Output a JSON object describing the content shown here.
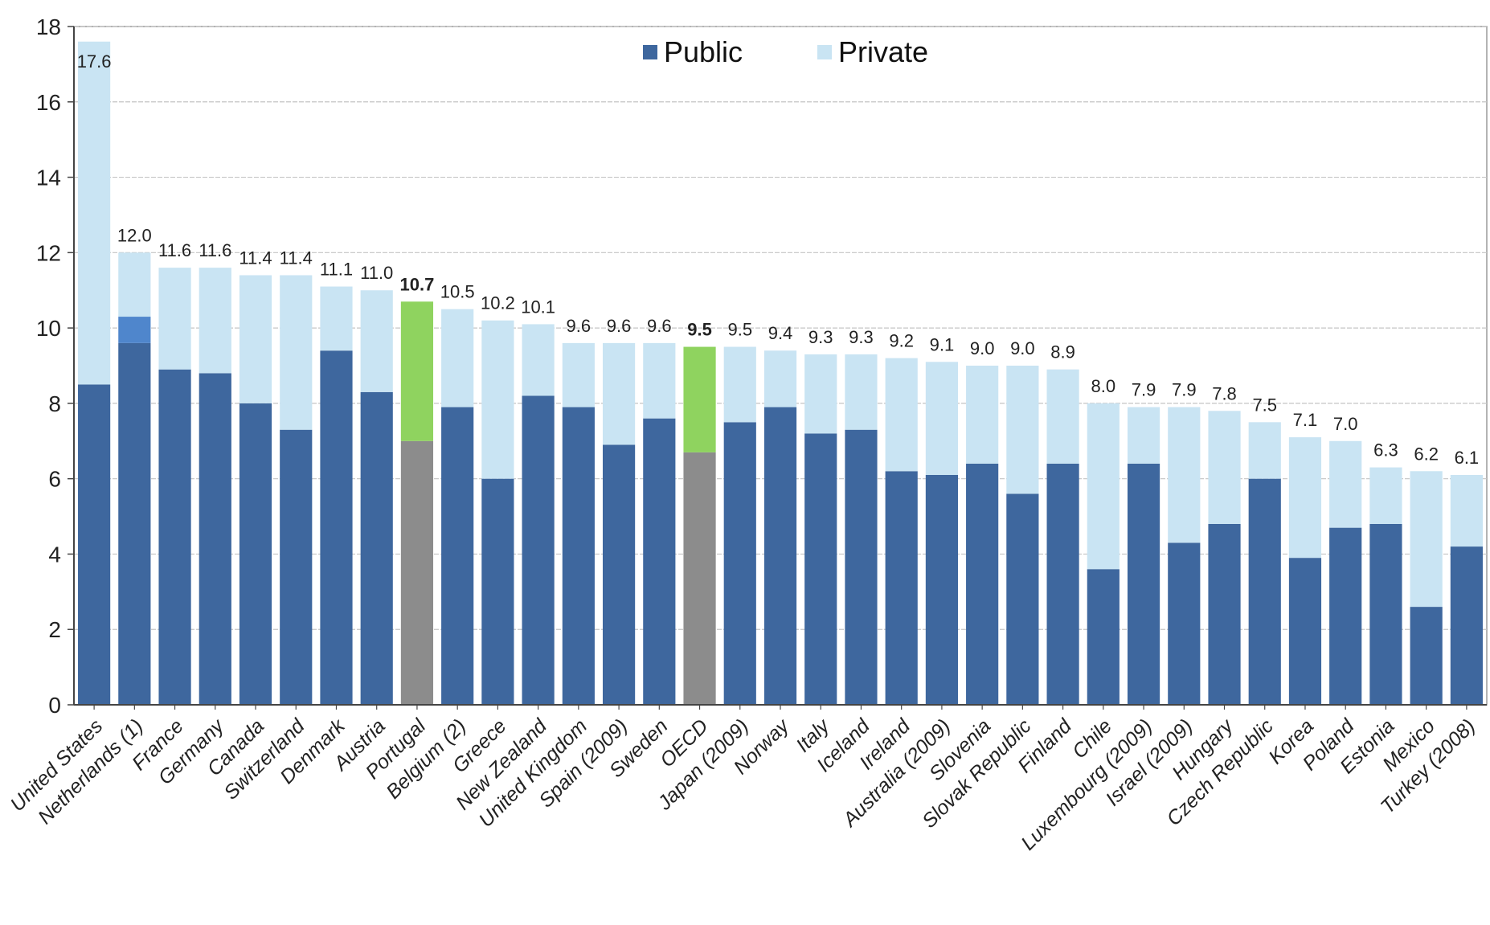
{
  "chart_data": {
    "type": "bar",
    "stacked": true,
    "categories": [
      "United States",
      "Netherlands (1)",
      "France",
      "Germany",
      "Canada",
      "Switzerland",
      "Denmark",
      "Austria",
      "Portugal",
      "Belgium (2)",
      "Greece",
      "New Zealand",
      "United Kingdom",
      "Spain (2009)",
      "Sweden",
      "OECD",
      "Japan (2009)",
      "Norway",
      "Italy",
      "Iceland",
      "Ireland",
      "Australia (2009)",
      "Slovenia",
      "Slovak Republic",
      "Finland",
      "Chile",
      "Luxembourg (2009)",
      "Israel (2009)",
      "Hungary",
      "Czech Republic",
      "Korea",
      "Poland",
      "Estonia",
      "Mexico",
      "Turkey (2008)"
    ],
    "totals": [
      17.6,
      12.0,
      11.6,
      11.6,
      11.4,
      11.4,
      11.1,
      11.0,
      10.7,
      10.5,
      10.2,
      10.1,
      9.6,
      9.6,
      9.6,
      9.5,
      9.5,
      9.4,
      9.3,
      9.3,
      9.2,
      9.1,
      9.0,
      9.0,
      8.9,
      8.0,
      7.9,
      7.9,
      7.8,
      7.5,
      7.1,
      7.0,
      6.3,
      6.2,
      6.1
    ],
    "total_labels": [
      "17.6",
      "12.0",
      "11.6",
      "11.6",
      "11.4",
      "11.4",
      "11.1",
      "11.0",
      "10.7",
      "10.5",
      "10.2",
      "10.1",
      "9.6",
      "9.6",
      "9.6",
      "9.5",
      "9.5",
      "9.4",
      "9.3",
      "9.3",
      "9.2",
      "9.1",
      "9.0",
      "9.0",
      "8.9",
      "8.0",
      "7.9",
      "7.9",
      "7.8",
      "7.5",
      "7.1",
      "7.0",
      "6.3",
      "6.2",
      "6.1"
    ],
    "bold_labels": [
      8,
      15
    ],
    "series": [
      {
        "name": "Public",
        "values": [
          8.5,
          9.6,
          8.9,
          8.8,
          8.0,
          7.3,
          9.4,
          8.3,
          7.0,
          7.9,
          6.0,
          8.2,
          7.9,
          6.9,
          7.6,
          6.7,
          7.5,
          7.9,
          7.2,
          7.3,
          6.2,
          6.1,
          6.4,
          5.6,
          6.4,
          3.6,
          6.4,
          4.3,
          4.8,
          6.0,
          3.9,
          4.7,
          4.8,
          2.6,
          4.2
        ]
      },
      {
        "name": "Private",
        "values": [
          9.1,
          2.4,
          2.7,
          2.8,
          3.4,
          4.1,
          1.7,
          2.7,
          3.7,
          2.6,
          4.2,
          1.9,
          1.7,
          2.7,
          2.0,
          2.8,
          2.0,
          1.5,
          2.1,
          2.0,
          3.0,
          3.0,
          2.6,
          3.4,
          2.5,
          4.4,
          1.5,
          3.6,
          3.0,
          1.5,
          3.2,
          2.3,
          1.5,
          3.6,
          1.9
        ]
      }
    ],
    "netherlands_unallocated": 0.7,
    "ylim": [
      0,
      18
    ],
    "yticks": [
      0,
      2,
      4,
      6,
      8,
      10,
      12,
      14,
      16,
      18
    ],
    "grid": true,
    "legend_position": "top-center",
    "colors": {
      "public": "#3e679e",
      "private": "#c9e4f3",
      "unallocated": "#4f86cc",
      "highlight_public": "#8c8c8c",
      "highlight_private": "#8fd35f",
      "grid": "#c4c4c4",
      "axis": "#444444"
    },
    "highlight_indices": [
      8,
      15
    ]
  }
}
